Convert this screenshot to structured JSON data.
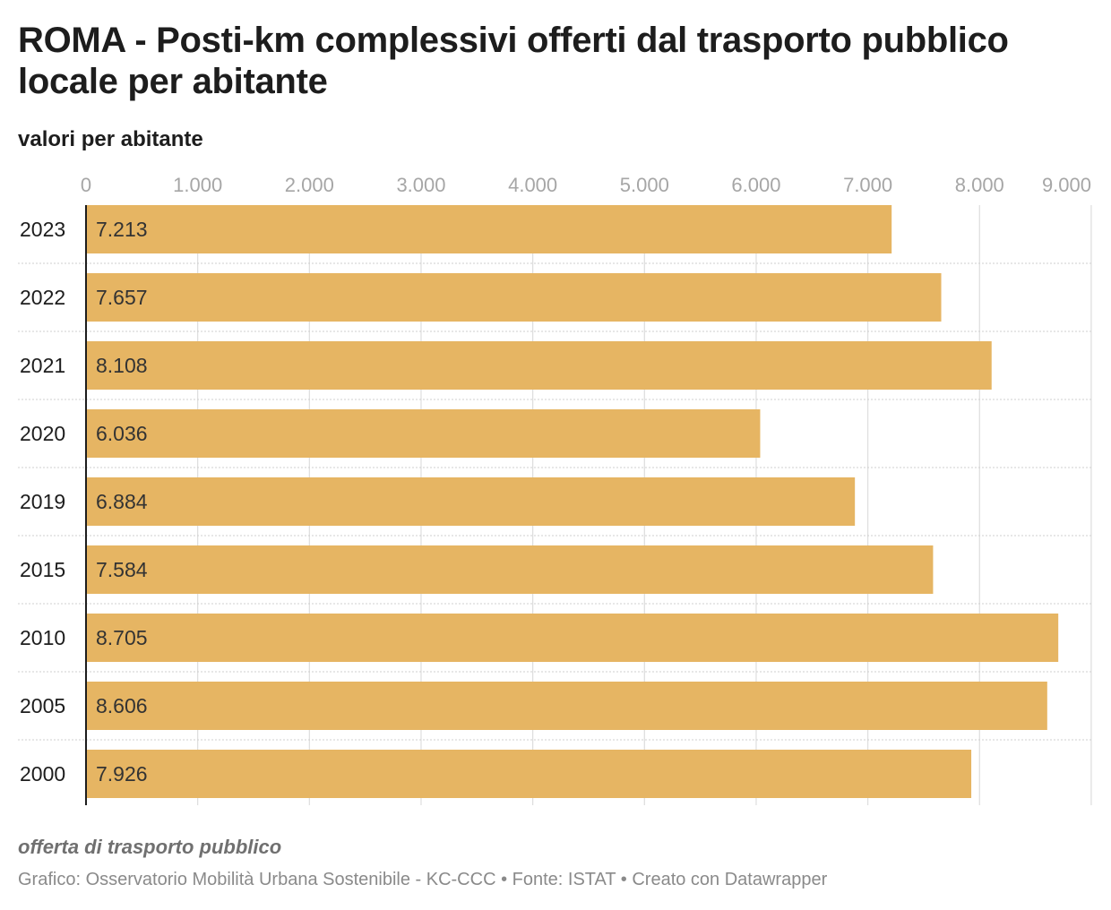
{
  "title": "ROMA - Posti-km complessivi offerti dal trasporto pubblico locale per abitante",
  "subtitle": "valori per abitante",
  "colors": {
    "bar": "#e6b563",
    "grid": "#dddddd",
    "axis": "#1d1d1d"
  },
  "chart_data": {
    "type": "bar",
    "orientation": "horizontal",
    "categories": [
      "2023",
      "2022",
      "2021",
      "2020",
      "2019",
      "2015",
      "2010",
      "2005",
      "2000"
    ],
    "values": [
      7213,
      7657,
      8108,
      6036,
      6884,
      7584,
      8705,
      8606,
      7926
    ],
    "value_labels": [
      "7.213",
      "7.657",
      "8.108",
      "6.036",
      "6.884",
      "7.584",
      "8.705",
      "8.606",
      "7.926"
    ],
    "x_ticks": [
      0,
      1000,
      2000,
      3000,
      4000,
      5000,
      6000,
      7000,
      8000,
      9000
    ],
    "x_tick_labels": [
      "0",
      "1.000",
      "2.000",
      "3.000",
      "4.000",
      "5.000",
      "6.000",
      "7.000",
      "8.000",
      "9.000"
    ],
    "xlim": [
      0,
      9000
    ],
    "grid": true
  },
  "footer": {
    "note": "offerta di trasporto pubblico",
    "credit": "Grafico: Osservatorio Mobilità Urbana Sostenibile - KC-CCC • Fonte: ISTAT • Creato con Datawrapper"
  }
}
